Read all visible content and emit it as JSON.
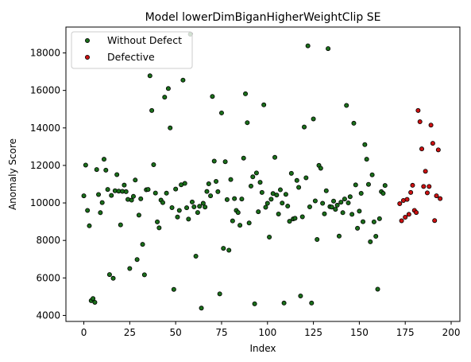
{
  "chart_data": {
    "type": "scatter",
    "title": "Model lowerDimBiganHigherWeightClip SE",
    "xlabel": "Index",
    "ylabel": "Anomaly Score",
    "xlim": [
      -9.75,
      204.75
    ],
    "ylim": [
      3680,
      19380
    ],
    "xticks": [
      0,
      25,
      50,
      75,
      100,
      125,
      150,
      175,
      200
    ],
    "yticks": [
      4000,
      6000,
      8000,
      10000,
      12000,
      14000,
      16000,
      18000
    ],
    "grid": false,
    "legend_position": "top-left",
    "series": [
      {
        "name": "Without Defect",
        "color": "#1a6e1a",
        "points": [
          [
            0,
            10380
          ],
          [
            1,
            12020
          ],
          [
            2,
            9600
          ],
          [
            3,
            8780
          ],
          [
            4,
            4790
          ],
          [
            5,
            4900
          ],
          [
            6,
            4700
          ],
          [
            7,
            11780
          ],
          [
            8,
            10450
          ],
          [
            9,
            9480
          ],
          [
            10,
            10020
          ],
          [
            11,
            12330
          ],
          [
            12,
            11750
          ],
          [
            13,
            10720
          ],
          [
            14,
            6180
          ],
          [
            15,
            10400
          ],
          [
            16,
            5980
          ],
          [
            17,
            10650
          ],
          [
            18,
            11510
          ],
          [
            19,
            10630
          ],
          [
            20,
            8830
          ],
          [
            21,
            10620
          ],
          [
            22,
            10950
          ],
          [
            23,
            10600
          ],
          [
            24,
            10190
          ],
          [
            25,
            6500
          ],
          [
            26,
            10150
          ],
          [
            27,
            10350
          ],
          [
            28,
            11220
          ],
          [
            29,
            6980
          ],
          [
            30,
            9350
          ],
          [
            31,
            10220
          ],
          [
            32,
            7790
          ],
          [
            33,
            6170
          ],
          [
            34,
            10700
          ],
          [
            35,
            10720
          ],
          [
            36,
            16780
          ],
          [
            37,
            14930
          ],
          [
            38,
            12040
          ],
          [
            39,
            10530
          ],
          [
            40,
            8990
          ],
          [
            41,
            8670
          ],
          [
            42,
            10150
          ],
          [
            43,
            10020
          ],
          [
            44,
            15640
          ],
          [
            45,
            10520
          ],
          [
            46,
            16100
          ],
          [
            47,
            14000
          ],
          [
            48,
            9750
          ],
          [
            49,
            5390
          ],
          [
            50,
            10740
          ],
          [
            51,
            9250
          ],
          [
            52,
            9600
          ],
          [
            53,
            10970
          ],
          [
            54,
            16550
          ],
          [
            55,
            11040
          ],
          [
            56,
            9740
          ],
          [
            57,
            9140
          ],
          [
            58,
            19000
          ],
          [
            59,
            10050
          ],
          [
            60,
            9790
          ],
          [
            61,
            7160
          ],
          [
            62,
            9490
          ],
          [
            63,
            9820
          ],
          [
            64,
            4390
          ],
          [
            65,
            9980
          ],
          [
            66,
            9780
          ],
          [
            67,
            10610
          ],
          [
            68,
            11020
          ],
          [
            69,
            10380
          ],
          [
            70,
            15680
          ],
          [
            71,
            12230
          ],
          [
            72,
            11150
          ],
          [
            73,
            10600
          ],
          [
            74,
            5150
          ],
          [
            75,
            14800
          ],
          [
            76,
            7580
          ],
          [
            77,
            12200
          ],
          [
            78,
            10180
          ],
          [
            79,
            7480
          ],
          [
            80,
            11250
          ],
          [
            81,
            9040
          ],
          [
            82,
            10230
          ],
          [
            83,
            9600
          ],
          [
            84,
            9490
          ],
          [
            85,
            8810
          ],
          [
            86,
            10210
          ],
          [
            87,
            12390
          ],
          [
            88,
            15820
          ],
          [
            89,
            14280
          ],
          [
            90,
            8930
          ],
          [
            91,
            10900
          ],
          [
            92,
            11390
          ],
          [
            93,
            4620
          ],
          [
            94,
            11600
          ],
          [
            95,
            9530
          ],
          [
            96,
            11100
          ],
          [
            97,
            10560
          ],
          [
            98,
            15230
          ],
          [
            99,
            9770
          ],
          [
            100,
            9980
          ],
          [
            101,
            8180
          ],
          [
            102,
            10200
          ],
          [
            103,
            10500
          ],
          [
            104,
            12430
          ],
          [
            105,
            10420
          ],
          [
            106,
            9410
          ],
          [
            107,
            10700
          ],
          [
            108,
            9990
          ],
          [
            109,
            4660
          ],
          [
            110,
            10460
          ],
          [
            111,
            9830
          ],
          [
            112,
            9020
          ],
          [
            113,
            11580
          ],
          [
            114,
            9150
          ],
          [
            115,
            9180
          ],
          [
            116,
            11200
          ],
          [
            117,
            10830
          ],
          [
            118,
            5040
          ],
          [
            119,
            9260
          ],
          [
            120,
            14050
          ],
          [
            121,
            11340
          ],
          [
            122,
            18380
          ],
          [
            123,
            9790
          ],
          [
            124,
            4660
          ],
          [
            125,
            14480
          ],
          [
            126,
            10110
          ],
          [
            127,
            8050
          ],
          [
            128,
            12000
          ],
          [
            129,
            11850
          ],
          [
            130,
            9980
          ],
          [
            131,
            9420
          ],
          [
            132,
            10650
          ],
          [
            133,
            18230
          ],
          [
            134,
            9800
          ],
          [
            135,
            9780
          ],
          [
            136,
            10100
          ],
          [
            137,
            9660
          ],
          [
            138,
            9880
          ],
          [
            139,
            8230
          ],
          [
            140,
            10040
          ],
          [
            141,
            9480
          ],
          [
            142,
            10210
          ],
          [
            143,
            15200
          ],
          [
            144,
            10000
          ],
          [
            145,
            10330
          ],
          [
            146,
            9390
          ],
          [
            147,
            14250
          ],
          [
            148,
            10960
          ],
          [
            149,
            8650
          ],
          [
            150,
            9560
          ],
          [
            151,
            10510
          ],
          [
            152,
            9000
          ],
          [
            153,
            13110
          ],
          [
            154,
            12330
          ],
          [
            155,
            10990
          ],
          [
            156,
            7930
          ],
          [
            157,
            11500
          ],
          [
            158,
            8990
          ],
          [
            159,
            8220
          ],
          [
            160,
            5400
          ],
          [
            161,
            9160
          ],
          [
            162,
            10600
          ],
          [
            163,
            10510
          ],
          [
            164,
            10930
          ]
        ]
      },
      {
        "name": "Defective",
        "color": "#cc1111",
        "points": [
          [
            172,
            9960
          ],
          [
            173,
            9050
          ],
          [
            174,
            10130
          ],
          [
            175,
            9240
          ],
          [
            176,
            10190
          ],
          [
            177,
            9390
          ],
          [
            178,
            10560
          ],
          [
            179,
            10940
          ],
          [
            180,
            9600
          ],
          [
            181,
            9490
          ],
          [
            182,
            14930
          ],
          [
            183,
            14330
          ],
          [
            184,
            12880
          ],
          [
            185,
            10880
          ],
          [
            186,
            11690
          ],
          [
            187,
            10540
          ],
          [
            188,
            10880
          ],
          [
            189,
            14150
          ],
          [
            190,
            13180
          ],
          [
            191,
            9060
          ],
          [
            192,
            10380
          ],
          [
            193,
            12830
          ],
          [
            194,
            10230
          ]
        ]
      }
    ]
  }
}
